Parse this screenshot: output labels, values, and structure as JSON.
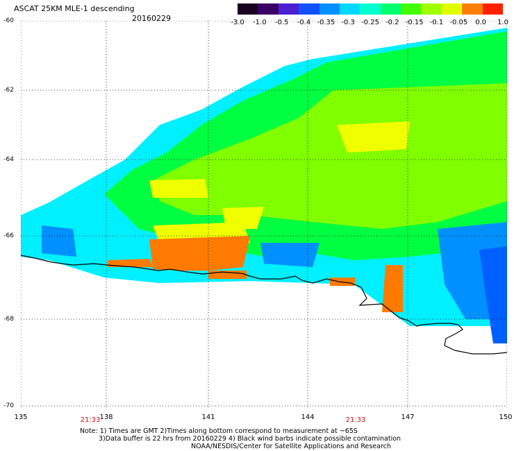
{
  "header": {
    "title": "ASCAT 25KM MLE-1 descending",
    "date": "20160229"
  },
  "colorbar": {
    "ticks": [
      "-3.0",
      "-1.0",
      "-0.5",
      "-0.4",
      "-0.35",
      "-0.3",
      "-0.25",
      "-0.2",
      "-0.15",
      "-0.1",
      "-0.05",
      "0.0",
      "1.0"
    ],
    "colors": [
      "#1a0020",
      "#3a0066",
      "#4a20d0",
      "#1050ff",
      "#0090ff",
      "#00d8ff",
      "#00ffd0",
      "#00ff70",
      "#40ff00",
      "#a0ff00",
      "#e0ff00",
      "#ff8000",
      "#ff2000"
    ]
  },
  "axes": {
    "lat_labels": [
      "-60",
      "-62",
      "-64",
      "-66",
      "-68",
      "-70"
    ],
    "lon_labels": [
      "135",
      "138",
      "141",
      "144",
      "147",
      "150"
    ],
    "pass_times": [
      "21:33",
      "21:33"
    ]
  },
  "map_legend": {
    "swath_colors": {
      "cyan": "#00f0ff",
      "green": "#00ff40",
      "light_green": "#80ff00",
      "yellow": "#f0ff00",
      "orange": "#ff7a00",
      "blue": "#0090ff",
      "deep_blue": "#0060ff"
    },
    "coastline_color": "#000000",
    "grid_color": "#000000"
  },
  "notes": {
    "line1": "Note: 1) Times are GMT 2)Times along bottom correspond to measurement at ~65S",
    "line2": "3)Data buffer is 22 hrs from 20160229 4) Black wind barbs indicate possible contamination",
    "line3": "NOAA/NESDIS/Center for Satellite Applications and Research"
  }
}
